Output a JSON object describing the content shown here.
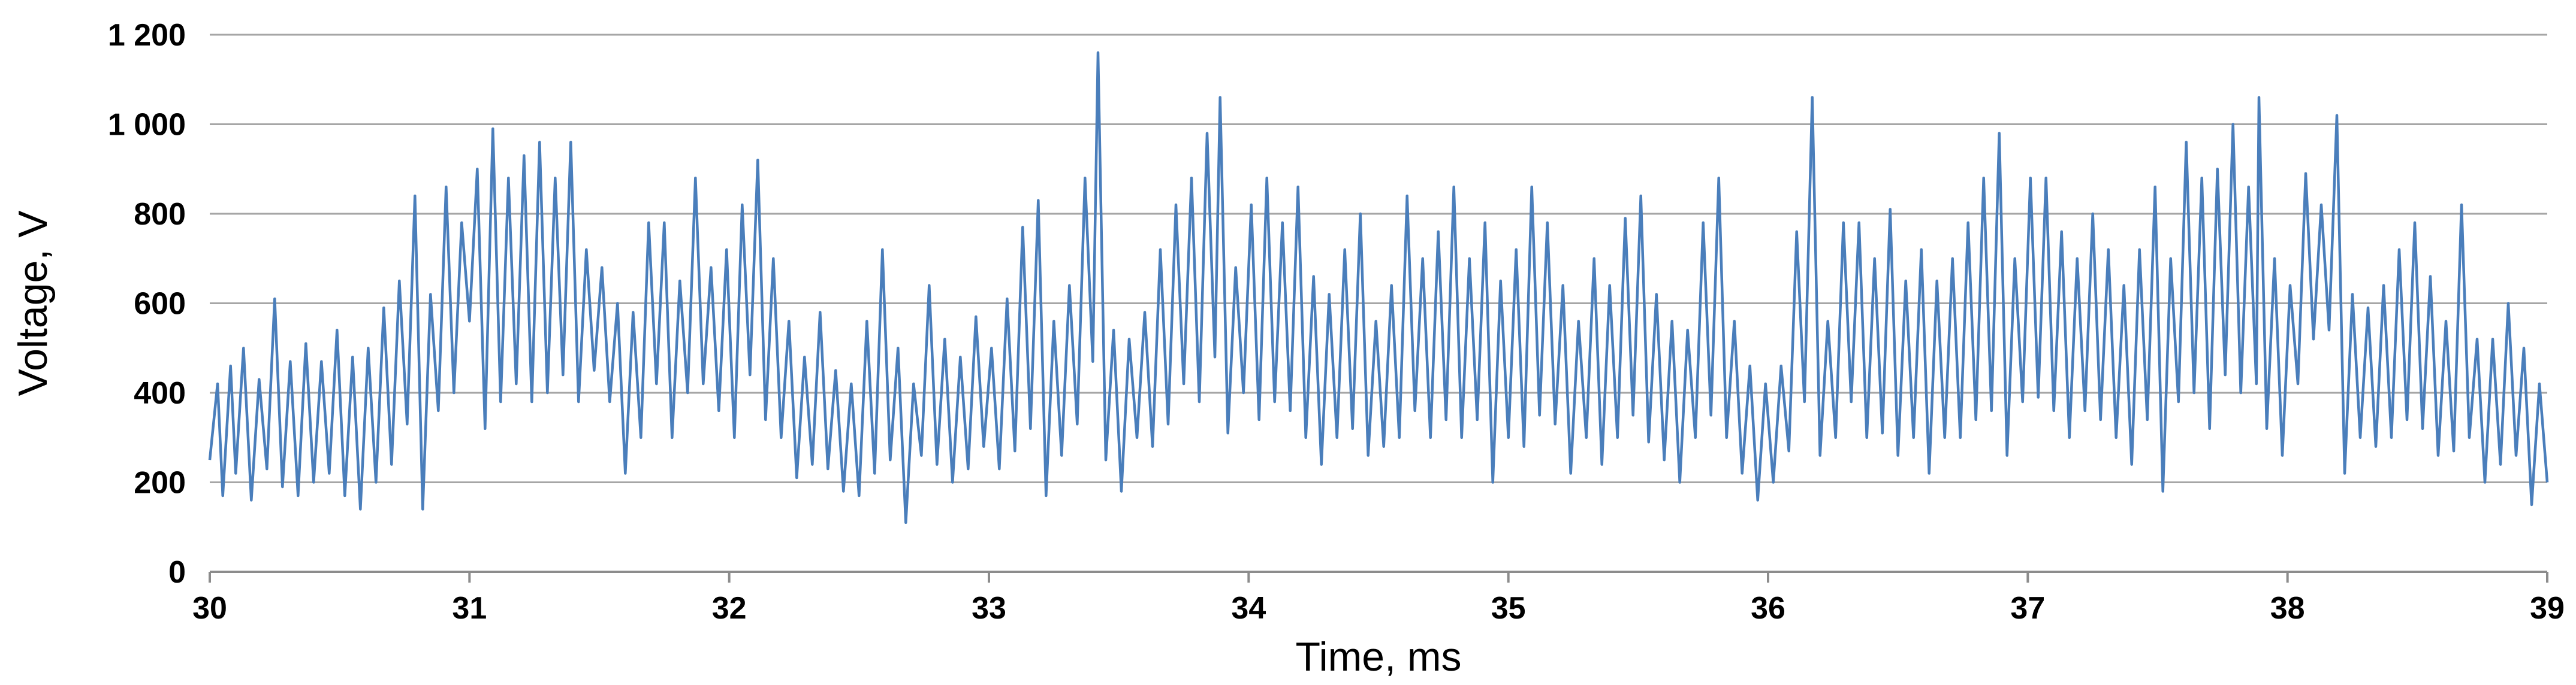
{
  "chart_data": {
    "type": "line",
    "title": "",
    "xlabel": "Time, ms",
    "ylabel": "Voltage, V",
    "xlim": [
      30,
      39
    ],
    "ylim": [
      0,
      1200
    ],
    "x_ticks": [
      30,
      31,
      32,
      33,
      34,
      35,
      36,
      37,
      38,
      39
    ],
    "x_tick_labels": [
      "30",
      "31",
      "32",
      "33",
      "34",
      "35",
      "36",
      "37",
      "38",
      "39"
    ],
    "y_ticks": [
      0,
      200,
      400,
      600,
      800,
      1000,
      1200
    ],
    "y_tick_labels": [
      "0",
      "200",
      "400",
      "600",
      "800",
      "1 000",
      "1 200"
    ],
    "grid": "horizontal",
    "legend": "none",
    "series_color": "#4a7ebb",
    "gridline_color": "#a6a6a6",
    "series": [
      {
        "name": "",
        "points": [
          [
            30.0,
            250
          ],
          [
            30.03,
            420
          ],
          [
            30.05,
            170
          ],
          [
            30.08,
            460
          ],
          [
            30.1,
            220
          ],
          [
            30.13,
            500
          ],
          [
            30.16,
            160
          ],
          [
            30.19,
            430
          ],
          [
            30.22,
            230
          ],
          [
            30.25,
            610
          ],
          [
            30.28,
            190
          ],
          [
            30.31,
            470
          ],
          [
            30.34,
            170
          ],
          [
            30.37,
            510
          ],
          [
            30.4,
            200
          ],
          [
            30.43,
            470
          ],
          [
            30.46,
            220
          ],
          [
            30.49,
            540
          ],
          [
            30.52,
            170
          ],
          [
            30.55,
            480
          ],
          [
            30.58,
            140
          ],
          [
            30.61,
            500
          ],
          [
            30.64,
            200
          ],
          [
            30.67,
            590
          ],
          [
            30.7,
            240
          ],
          [
            30.73,
            650
          ],
          [
            30.76,
            330
          ],
          [
            30.79,
            840
          ],
          [
            30.82,
            140
          ],
          [
            30.85,
            620
          ],
          [
            30.88,
            360
          ],
          [
            30.91,
            860
          ],
          [
            30.94,
            400
          ],
          [
            30.97,
            780
          ],
          [
            31.0,
            560
          ],
          [
            31.03,
            900
          ],
          [
            31.06,
            320
          ],
          [
            31.09,
            990
          ],
          [
            31.12,
            380
          ],
          [
            31.15,
            880
          ],
          [
            31.18,
            420
          ],
          [
            31.21,
            930
          ],
          [
            31.24,
            380
          ],
          [
            31.27,
            960
          ],
          [
            31.3,
            400
          ],
          [
            31.33,
            880
          ],
          [
            31.36,
            440
          ],
          [
            31.39,
            960
          ],
          [
            31.42,
            380
          ],
          [
            31.45,
            720
          ],
          [
            31.48,
            450
          ],
          [
            31.51,
            680
          ],
          [
            31.54,
            380
          ],
          [
            31.57,
            600
          ],
          [
            31.6,
            220
          ],
          [
            31.63,
            580
          ],
          [
            31.66,
            300
          ],
          [
            31.69,
            780
          ],
          [
            31.72,
            420
          ],
          [
            31.75,
            780
          ],
          [
            31.78,
            300
          ],
          [
            31.81,
            650
          ],
          [
            31.84,
            400
          ],
          [
            31.87,
            880
          ],
          [
            31.9,
            420
          ],
          [
            31.93,
            680
          ],
          [
            31.96,
            360
          ],
          [
            31.99,
            720
          ],
          [
            32.02,
            300
          ],
          [
            32.05,
            820
          ],
          [
            32.08,
            440
          ],
          [
            32.11,
            920
          ],
          [
            32.14,
            340
          ],
          [
            32.17,
            700
          ],
          [
            32.2,
            300
          ],
          [
            32.23,
            560
          ],
          [
            32.26,
            210
          ],
          [
            32.29,
            480
          ],
          [
            32.32,
            240
          ],
          [
            32.35,
            580
          ],
          [
            32.38,
            230
          ],
          [
            32.41,
            450
          ],
          [
            32.44,
            180
          ],
          [
            32.47,
            420
          ],
          [
            32.5,
            170
          ],
          [
            32.53,
            560
          ],
          [
            32.56,
            220
          ],
          [
            32.59,
            720
          ],
          [
            32.62,
            250
          ],
          [
            32.65,
            500
          ],
          [
            32.68,
            110
          ],
          [
            32.71,
            420
          ],
          [
            32.74,
            260
          ],
          [
            32.77,
            640
          ],
          [
            32.8,
            240
          ],
          [
            32.83,
            520
          ],
          [
            32.86,
            200
          ],
          [
            32.89,
            480
          ],
          [
            32.92,
            230
          ],
          [
            32.95,
            570
          ],
          [
            32.98,
            280
          ],
          [
            33.01,
            500
          ],
          [
            33.04,
            230
          ],
          [
            33.07,
            610
          ],
          [
            33.1,
            270
          ],
          [
            33.13,
            770
          ],
          [
            33.16,
            320
          ],
          [
            33.19,
            830
          ],
          [
            33.22,
            170
          ],
          [
            33.25,
            560
          ],
          [
            33.28,
            260
          ],
          [
            33.31,
            640
          ],
          [
            33.34,
            330
          ],
          [
            33.37,
            880
          ],
          [
            33.4,
            470
          ],
          [
            33.42,
            1160
          ],
          [
            33.45,
            250
          ],
          [
            33.48,
            540
          ],
          [
            33.51,
            180
          ],
          [
            33.54,
            520
          ],
          [
            33.57,
            300
          ],
          [
            33.6,
            580
          ],
          [
            33.63,
            280
          ],
          [
            33.66,
            720
          ],
          [
            33.69,
            330
          ],
          [
            33.72,
            820
          ],
          [
            33.75,
            420
          ],
          [
            33.78,
            880
          ],
          [
            33.81,
            380
          ],
          [
            33.84,
            980
          ],
          [
            33.87,
            480
          ],
          [
            33.89,
            1060
          ],
          [
            33.92,
            310
          ],
          [
            33.95,
            680
          ],
          [
            33.98,
            400
          ],
          [
            34.01,
            820
          ],
          [
            34.04,
            340
          ],
          [
            34.07,
            880
          ],
          [
            34.1,
            380
          ],
          [
            34.13,
            780
          ],
          [
            34.16,
            360
          ],
          [
            34.19,
            860
          ],
          [
            34.22,
            300
          ],
          [
            34.25,
            660
          ],
          [
            34.28,
            240
          ],
          [
            34.31,
            620
          ],
          [
            34.34,
            300
          ],
          [
            34.37,
            720
          ],
          [
            34.4,
            320
          ],
          [
            34.43,
            800
          ],
          [
            34.46,
            260
          ],
          [
            34.49,
            560
          ],
          [
            34.52,
            280
          ],
          [
            34.55,
            640
          ],
          [
            34.58,
            300
          ],
          [
            34.61,
            840
          ],
          [
            34.64,
            360
          ],
          [
            34.67,
            700
          ],
          [
            34.7,
            300
          ],
          [
            34.73,
            760
          ],
          [
            34.76,
            340
          ],
          [
            34.79,
            860
          ],
          [
            34.82,
            300
          ],
          [
            34.85,
            700
          ],
          [
            34.88,
            340
          ],
          [
            34.91,
            780
          ],
          [
            34.94,
            200
          ],
          [
            34.97,
            650
          ],
          [
            35.0,
            300
          ],
          [
            35.03,
            720
          ],
          [
            35.06,
            280
          ],
          [
            35.09,
            860
          ],
          [
            35.12,
            350
          ],
          [
            35.15,
            780
          ],
          [
            35.18,
            330
          ],
          [
            35.21,
            640
          ],
          [
            35.24,
            220
          ],
          [
            35.27,
            560
          ],
          [
            35.3,
            300
          ],
          [
            35.33,
            700
          ],
          [
            35.36,
            240
          ],
          [
            35.39,
            640
          ],
          [
            35.42,
            300
          ],
          [
            35.45,
            790
          ],
          [
            35.48,
            350
          ],
          [
            35.51,
            840
          ],
          [
            35.54,
            290
          ],
          [
            35.57,
            620
          ],
          [
            35.6,
            250
          ],
          [
            35.63,
            560
          ],
          [
            35.66,
            200
          ],
          [
            35.69,
            540
          ],
          [
            35.72,
            300
          ],
          [
            35.75,
            780
          ],
          [
            35.78,
            350
          ],
          [
            35.81,
            880
          ],
          [
            35.84,
            300
          ],
          [
            35.87,
            560
          ],
          [
            35.9,
            220
          ],
          [
            35.93,
            460
          ],
          [
            35.96,
            160
          ],
          [
            35.99,
            420
          ],
          [
            36.02,
            200
          ],
          [
            36.05,
            460
          ],
          [
            36.08,
            270
          ],
          [
            36.11,
            760
          ],
          [
            36.14,
            380
          ],
          [
            36.17,
            1060
          ],
          [
            36.2,
            260
          ],
          [
            36.23,
            560
          ],
          [
            36.26,
            300
          ],
          [
            36.29,
            780
          ],
          [
            36.32,
            380
          ],
          [
            36.35,
            780
          ],
          [
            36.38,
            300
          ],
          [
            36.41,
            700
          ],
          [
            36.44,
            310
          ],
          [
            36.47,
            810
          ],
          [
            36.5,
            260
          ],
          [
            36.53,
            650
          ],
          [
            36.56,
            300
          ],
          [
            36.59,
            720
          ],
          [
            36.62,
            220
          ],
          [
            36.65,
            650
          ],
          [
            36.68,
            300
          ],
          [
            36.71,
            700
          ],
          [
            36.74,
            300
          ],
          [
            36.77,
            780
          ],
          [
            36.8,
            340
          ],
          [
            36.83,
            880
          ],
          [
            36.86,
            360
          ],
          [
            36.89,
            980
          ],
          [
            36.92,
            260
          ],
          [
            36.95,
            700
          ],
          [
            36.98,
            380
          ],
          [
            37.01,
            880
          ],
          [
            37.04,
            390
          ],
          [
            37.07,
            880
          ],
          [
            37.1,
            360
          ],
          [
            37.13,
            760
          ],
          [
            37.16,
            300
          ],
          [
            37.19,
            700
          ],
          [
            37.22,
            360
          ],
          [
            37.25,
            800
          ],
          [
            37.28,
            340
          ],
          [
            37.31,
            720
          ],
          [
            37.34,
            300
          ],
          [
            37.37,
            640
          ],
          [
            37.4,
            240
          ],
          [
            37.43,
            720
          ],
          [
            37.46,
            340
          ],
          [
            37.49,
            860
          ],
          [
            37.52,
            180
          ],
          [
            37.55,
            700
          ],
          [
            37.58,
            380
          ],
          [
            37.61,
            960
          ],
          [
            37.64,
            400
          ],
          [
            37.67,
            880
          ],
          [
            37.7,
            320
          ],
          [
            37.73,
            900
          ],
          [
            37.76,
            440
          ],
          [
            37.79,
            1000
          ],
          [
            37.82,
            400
          ],
          [
            37.85,
            860
          ],
          [
            37.88,
            420
          ],
          [
            37.89,
            1060
          ],
          [
            37.92,
            320
          ],
          [
            37.95,
            700
          ],
          [
            37.98,
            260
          ],
          [
            38.01,
            640
          ],
          [
            38.04,
            420
          ],
          [
            38.07,
            890
          ],
          [
            38.1,
            520
          ],
          [
            38.13,
            820
          ],
          [
            38.16,
            540
          ],
          [
            38.19,
            1020
          ],
          [
            38.22,
            220
          ],
          [
            38.25,
            620
          ],
          [
            38.28,
            300
          ],
          [
            38.31,
            590
          ],
          [
            38.34,
            280
          ],
          [
            38.37,
            640
          ],
          [
            38.4,
            300
          ],
          [
            38.43,
            720
          ],
          [
            38.46,
            340
          ],
          [
            38.49,
            780
          ],
          [
            38.52,
            320
          ],
          [
            38.55,
            660
          ],
          [
            38.58,
            260
          ],
          [
            38.61,
            560
          ],
          [
            38.64,
            270
          ],
          [
            38.67,
            820
          ],
          [
            38.7,
            300
          ],
          [
            38.73,
            520
          ],
          [
            38.76,
            200
          ],
          [
            38.79,
            520
          ],
          [
            38.82,
            240
          ],
          [
            38.85,
            600
          ],
          [
            38.88,
            260
          ],
          [
            38.91,
            500
          ],
          [
            38.94,
            150
          ],
          [
            38.97,
            420
          ],
          [
            39.0,
            200
          ]
        ]
      }
    ]
  }
}
